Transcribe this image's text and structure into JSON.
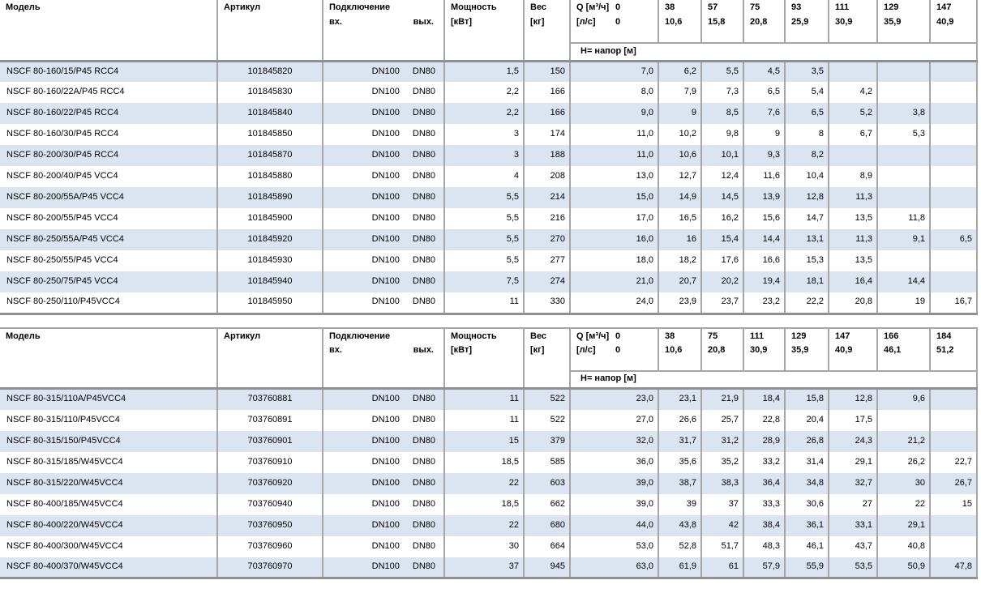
{
  "labels": {
    "model": "Модель",
    "article": "Артикул",
    "connection": "Подключение",
    "conn_in": "вх.",
    "conn_out": "вых.",
    "power_1": "Мощность",
    "power_2": "[кВт]",
    "weight_1": "Вес",
    "weight_2": "[кг]",
    "q_label": "Q [м³/ч]",
    "q_zero": "0",
    "ls_label": "[л/с]",
    "ls_zero": "0",
    "head_band": "H= напор [м]"
  },
  "colors": {
    "row_alt": "#dbe5f1",
    "border": "#a6a6a6",
    "border_heavy": "#909090"
  },
  "tables": [
    {
      "q_m3h": [
        "38",
        "57",
        "75",
        "93",
        "111",
        "129",
        "147"
      ],
      "q_ls": [
        "10,6",
        "15,8",
        "20,8",
        "25,9",
        "30,9",
        "35,9",
        "40,9"
      ],
      "rows": [
        {
          "model": "NSCF 80-160/15/P45 RCC4",
          "article": "101845820",
          "dn_in": "DN100",
          "dn_out": "DN80",
          "power": "1,5",
          "weight": "150",
          "h": [
            "7,0",
            "6,2",
            "5,5",
            "4,5",
            "3,5",
            "",
            "",
            ""
          ]
        },
        {
          "model": "NSCF 80-160/22A/P45 RCC4",
          "article": "101845830",
          "dn_in": "DN100",
          "dn_out": "DN80",
          "power": "2,2",
          "weight": "166",
          "h": [
            "8,0",
            "7,9",
            "7,3",
            "6,5",
            "5,4",
            "4,2",
            "",
            ""
          ]
        },
        {
          "model": "NSCF 80-160/22/P45 RCC4",
          "article": "101845840",
          "dn_in": "DN100",
          "dn_out": "DN80",
          "power": "2,2",
          "weight": "166",
          "h": [
            "9,0",
            "9",
            "8,5",
            "7,6",
            "6,5",
            "5,2",
            "3,8",
            ""
          ]
        },
        {
          "model": "NSCF 80-160/30/P45 RCC4",
          "article": "101845850",
          "dn_in": "DN100",
          "dn_out": "DN80",
          "power": "3",
          "weight": "174",
          "h": [
            "11,0",
            "10,2",
            "9,8",
            "9",
            "8",
            "6,7",
            "5,3",
            ""
          ]
        },
        {
          "model": "NSCF 80-200/30/P45 RCC4",
          "article": "101845870",
          "dn_in": "DN100",
          "dn_out": "DN80",
          "power": "3",
          "weight": "188",
          "h": [
            "11,0",
            "10,6",
            "10,1",
            "9,3",
            "8,2",
            "",
            "",
            ""
          ]
        },
        {
          "model": "NSCF 80-200/40/P45 VCC4",
          "article": "101845880",
          "dn_in": "DN100",
          "dn_out": "DN80",
          "power": "4",
          "weight": "208",
          "h": [
            "13,0",
            "12,7",
            "12,4",
            "11,6",
            "10,4",
            "8,9",
            "",
            ""
          ]
        },
        {
          "model": "NSCF 80-200/55A/P45 VCC4",
          "article": "101845890",
          "dn_in": "DN100",
          "dn_out": "DN80",
          "power": "5,5",
          "weight": "214",
          "h": [
            "15,0",
            "14,9",
            "14,5",
            "13,9",
            "12,8",
            "11,3",
            "",
            ""
          ]
        },
        {
          "model": "NSCF 80-200/55/P45 VCC4",
          "article": "101845900",
          "dn_in": "DN100",
          "dn_out": "DN80",
          "power": "5,5",
          "weight": "216",
          "h": [
            "17,0",
            "16,5",
            "16,2",
            "15,6",
            "14,7",
            "13,5",
            "11,8",
            ""
          ]
        },
        {
          "model": "NSCF 80-250/55A/P45 VCC4",
          "article": "101845920",
          "dn_in": "DN100",
          "dn_out": "DN80",
          "power": "5,5",
          "weight": "270",
          "h": [
            "16,0",
            "16",
            "15,4",
            "14,4",
            "13,1",
            "11,3",
            "9,1",
            "6,5"
          ]
        },
        {
          "model": "NSCF 80-250/55/P45 VCC4",
          "article": "101845930",
          "dn_in": "DN100",
          "dn_out": "DN80",
          "power": "5,5",
          "weight": "277",
          "h": [
            "18,0",
            "18,2",
            "17,6",
            "16,6",
            "15,3",
            "13,5",
            "",
            ""
          ]
        },
        {
          "model": "NSCF 80-250/75/P45 VCC4",
          "article": "101845940",
          "dn_in": "DN100",
          "dn_out": "DN80",
          "power": "7,5",
          "weight": "274",
          "h": [
            "21,0",
            "20,7",
            "20,2",
            "19,4",
            "18,1",
            "16,4",
            "14,4",
            ""
          ]
        },
        {
          "model": "NSCF 80-250/110/P45VCC4",
          "article": "101845950",
          "dn_in": "DN100",
          "dn_out": "DN80",
          "power": "11",
          "weight": "330",
          "h": [
            "24,0",
            "23,9",
            "23,7",
            "23,2",
            "22,2",
            "20,8",
            "19",
            "16,7"
          ]
        }
      ]
    },
    {
      "q_m3h": [
        "38",
        "75",
        "111",
        "129",
        "147",
        "166",
        "184"
      ],
      "q_ls": [
        "10,6",
        "20,8",
        "30,9",
        "35,9",
        "40,9",
        "46,1",
        "51,2"
      ],
      "rows": [
        {
          "model": "NSCF 80-315/110A/P45VCC4",
          "article": "703760881",
          "dn_in": "DN100",
          "dn_out": "DN80",
          "power": "11",
          "weight": "522",
          "h": [
            "23,0",
            "23,1",
            "21,9",
            "18,4",
            "15,8",
            "12,8",
            "9,6",
            ""
          ]
        },
        {
          "model": "NSCF 80-315/110/P45VCC4",
          "article": "703760891",
          "dn_in": "DN100",
          "dn_out": "DN80",
          "power": "11",
          "weight": "522",
          "h": [
            "27,0",
            "26,6",
            "25,7",
            "22,8",
            "20,4",
            "17,5",
            "",
            ""
          ]
        },
        {
          "model": "NSCF 80-315/150/P45VCC4",
          "article": "703760901",
          "dn_in": "DN100",
          "dn_out": "DN80",
          "power": "15",
          "weight": "379",
          "h": [
            "32,0",
            "31,7",
            "31,2",
            "28,9",
            "26,8",
            "24,3",
            "21,2",
            ""
          ]
        },
        {
          "model": "NSCF 80-315/185/W45VCC4",
          "article": "703760910",
          "dn_in": "DN100",
          "dn_out": "DN80",
          "power": "18,5",
          "weight": "585",
          "h": [
            "36,0",
            "35,6",
            "35,2",
            "33,2",
            "31,4",
            "29,1",
            "26,2",
            "22,7"
          ]
        },
        {
          "model": "NSCF 80-315/220/W45VCC4",
          "article": "703760920",
          "dn_in": "DN100",
          "dn_out": "DN80",
          "power": "22",
          "weight": "603",
          "h": [
            "39,0",
            "38,7",
            "38,3",
            "36,4",
            "34,8",
            "32,7",
            "30",
            "26,7"
          ]
        },
        {
          "model": "NSCF 80-400/185/W45VCC4",
          "article": "703760940",
          "dn_in": "DN100",
          "dn_out": "DN80",
          "power": "18,5",
          "weight": "662",
          "h": [
            "39,0",
            "39",
            "37",
            "33,3",
            "30,6",
            "27",
            "22",
            "15"
          ]
        },
        {
          "model": "NSCF 80-400/220/W45VCC4",
          "article": "703760950",
          "dn_in": "DN100",
          "dn_out": "DN80",
          "power": "22",
          "weight": "680",
          "h": [
            "44,0",
            "43,8",
            "42",
            "38,4",
            "36,1",
            "33,1",
            "29,1",
            ""
          ]
        },
        {
          "model": "NSCF 80-400/300/W45VCC4",
          "article": "703760960",
          "dn_in": "DN100",
          "dn_out": "DN80",
          "power": "30",
          "weight": "664",
          "h": [
            "53,0",
            "52,8",
            "51,7",
            "48,3",
            "46,1",
            "43,7",
            "40,8",
            ""
          ]
        },
        {
          "model": "NSCF 80-400/370/W45VCC4",
          "article": "703760970",
          "dn_in": "DN100",
          "dn_out": "DN80",
          "power": "37",
          "weight": "945",
          "h": [
            "63,0",
            "61,9",
            "61",
            "57,9",
            "55,9",
            "53,5",
            "50,9",
            "47,8"
          ]
        }
      ]
    }
  ]
}
